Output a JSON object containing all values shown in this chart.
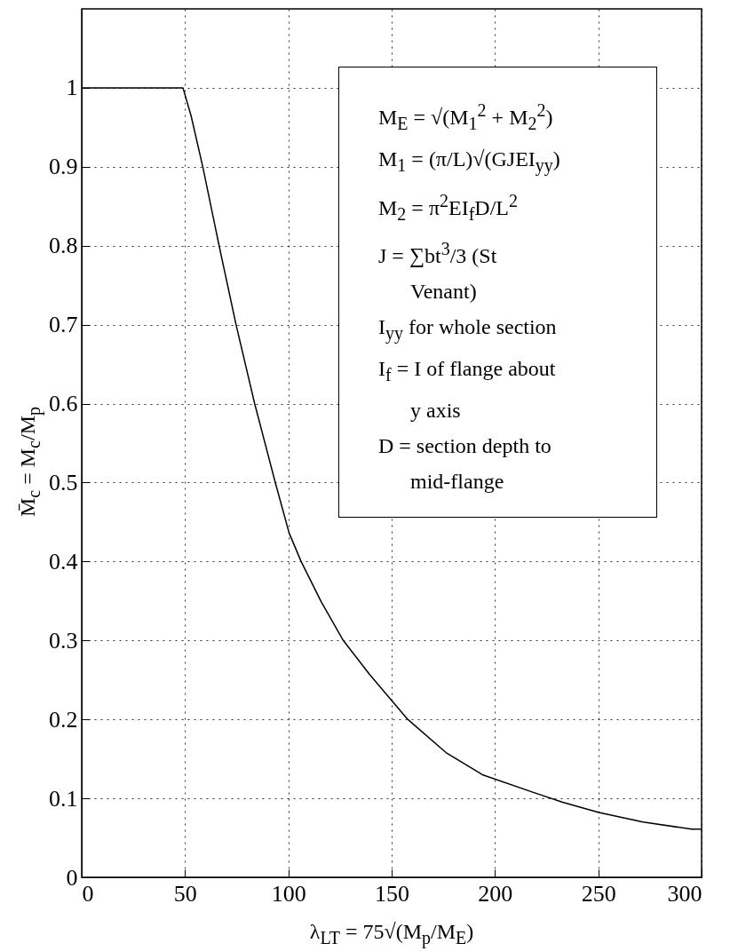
{
  "chart_data": {
    "type": "line",
    "xlabel": "λ$_{LT}$ = 75√(M$_{p}$/M$_{E}$)",
    "ylabel": "M̄$_{c}$ = M$_{c}$/M$_{p}$",
    "x": [
      0,
      49,
      52.9,
      58.6,
      66.5,
      74.7,
      83.7,
      93.7,
      100.4,
      106.2,
      115.9,
      126.6,
      139.3,
      157.8,
      176.3,
      193.9,
      219.2,
      232.8,
      250.3,
      271.7,
      295.1,
      300
    ],
    "series": [
      {
        "color": "#000000",
        "values": [
          1,
          1,
          0.965,
          0.9,
          0.8,
          0.7,
          0.6,
          0.5,
          0.436,
          0.4,
          0.349,
          0.3,
          0.257,
          0.2,
          0.158,
          0.13,
          0.107,
          0.095,
          0.082,
          0.07,
          0.061,
          0.061
        ]
      }
    ],
    "xlim": [
      0,
      300
    ],
    "xticks": [
      0,
      50,
      100,
      150,
      200,
      250,
      300
    ],
    "ylim": [
      0,
      1.1
    ],
    "yticks": [
      0,
      0.1,
      0.2,
      0.3,
      0.4,
      0.5,
      0.6,
      0.7,
      0.8,
      0.9,
      1
    ],
    "grid": true,
    "annotations": [
      "M$_{E}$ = √(M$_{1}$$^{2}$ + M$_{2}$$^{2}$)",
      "M$_{1}$ = (π/L)√(GJEI$_{yy}$)",
      "M$_{2}$ = π$^{2}$EI$_{f}$D/L$^{2}$",
      "J = ∑bt$^{3}$/3 (St Venant)",
      "I$_{yy}$ for whole section",
      "I$_{f}$ = I of flange about y axis",
      "D = section depth to mid-flange"
    ]
  }
}
